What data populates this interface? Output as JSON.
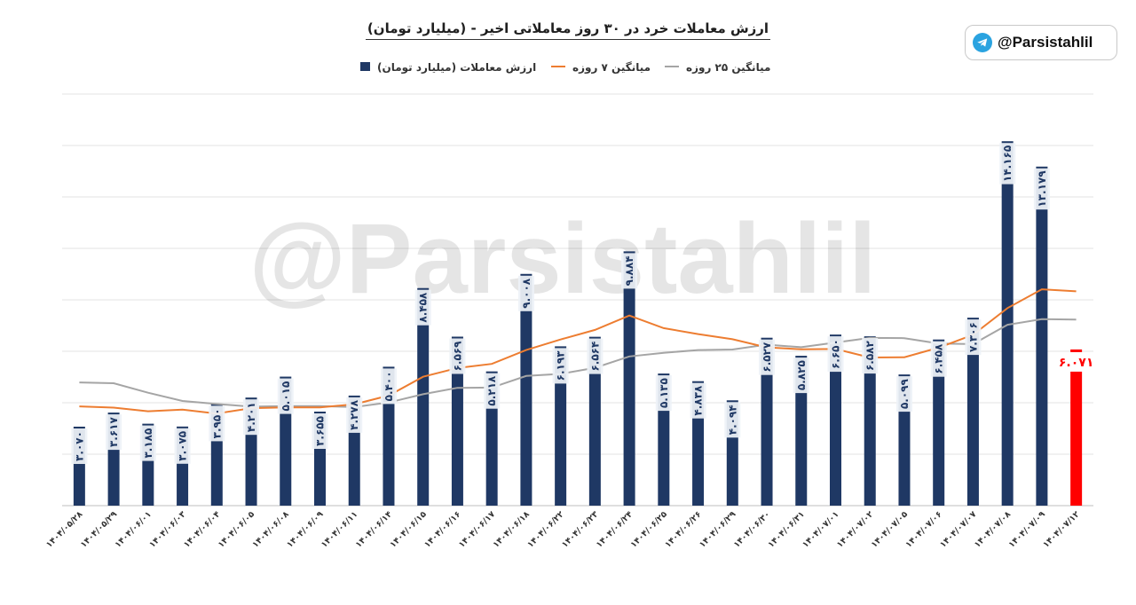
{
  "brand": {
    "handle": "@Parsistahlil",
    "icon": "telegram-icon",
    "color": "#2aa3e0"
  },
  "watermark": "@Parsistahlil",
  "chart_data": {
    "type": "bar",
    "title": "ارزش معاملات خرد در ۳۰ روز معاملاتی اخیر - (میلیارد تومان)",
    "ylim": [
      0,
      16000
    ],
    "grid": true,
    "legend_position": "top-center",
    "categories": [
      "۱۴۰۴/۰۵/۲۸",
      "۱۴۰۴/۰۵/۲۹",
      "۱۴۰۴/۰۶/۰۱",
      "۱۴۰۴/۰۶/۰۳",
      "۱۴۰۴/۰۶/۰۴",
      "۱۴۰۴/۰۶/۰۵",
      "۱۴۰۴/۰۶/۰۸",
      "۱۴۰۴/۰۶/۰۹",
      "۱۴۰۴/۰۶/۱۱",
      "۱۴۰۴/۰۶/۱۴",
      "۱۴۰۴/۰۶/۱۵",
      "۱۴۰۴/۰۶/۱۶",
      "۱۴۰۴/۰۶/۱۷",
      "۱۴۰۴/۰۶/۱۸",
      "۱۴۰۴/۰۶/۲۲",
      "۱۴۰۴/۰۶/۲۳",
      "۱۴۰۴/۰۶/۲۴",
      "۱۴۰۴/۰۶/۲۵",
      "۱۴۰۴/۰۶/۲۶",
      "۱۴۰۴/۰۶/۲۹",
      "۱۴۰۴/۰۶/۳۰",
      "۱۴۰۴/۰۶/۳۱",
      "۱۴۰۴/۰۷/۰۱",
      "۱۴۰۴/۰۷/۰۲",
      "۱۴۰۴/۰۷/۰۵",
      "۱۴۰۴/۰۷/۰۶",
      "۱۴۰۴/۰۷/۰۷",
      "۱۴۰۴/۰۷/۰۸",
      "۱۴۰۴/۰۷/۰۹",
      "۱۴۰۴/۰۷/۱۲"
    ],
    "series": [
      {
        "name": "ارزش معاملات (میلیارد تومان)",
        "color": "#1f3864",
        "highlight_color": "#ff0000",
        "values": [
          3070,
          3617,
          3185,
          3075,
          3950,
          4201,
          5015,
          3655,
          4278,
          5400,
          8458,
          6569,
          5218,
          9008,
          6193,
          6564,
          9884,
          5135,
          4838,
          4094,
          6527,
          5825,
          6650,
          6582,
          5099,
          6458,
          7306,
          14165,
          13179,
          6071
        ],
        "labels": [
          "۳.۰۷۰",
          "۳.۶۱۷",
          "۳.۱۸۵",
          "۳.۰۷۵",
          "۳.۹۵۰",
          "۴.۲۰۱",
          "۵.۰۱۵",
          "۳.۶۵۵",
          "۴.۲۷۸",
          "۵.۴۰۰",
          "۸.۴۵۸",
          "۶.۵۶۹",
          "۵.۲۱۸",
          "۹.۰۰۸",
          "۶.۱۹۳",
          "۶.۵۶۴",
          "۹.۸۸۴",
          "۵.۱۳۵",
          "۴.۸۳۸",
          "۴.۰۹۴",
          "۶.۵۲۷",
          "۵.۸۲۵",
          "۶.۶۵۰",
          "۶.۵۸۲",
          "۵.۰۹۹",
          "۶.۴۵۸",
          "۷.۳۰۶",
          "۱۴.۱۶۵",
          "۱۳.۱۷۹",
          "۶.۰۷۱"
        ]
      },
      {
        "name": "میانگین ۷ روزه",
        "color": "#ed7d31",
        "values": [
          3860,
          3810,
          3670,
          3730,
          3580,
          3790,
          3820,
          3820,
          3940,
          4280,
          5010,
          5350,
          5510,
          6050,
          6460,
          6830,
          7390,
          6900,
          6670,
          6470,
          6150,
          6080,
          6090,
          5760,
          5770,
          6140,
          6640,
          7680,
          8410,
          8330
        ]
      },
      {
        "name": "میانگین ۲۵ روزه",
        "color": "#a5a5a5",
        "values": [
          4790,
          4760,
          4390,
          4070,
          3950,
          3850,
          3870,
          3870,
          3830,
          4010,
          4330,
          4580,
          4590,
          5040,
          5120,
          5360,
          5800,
          5940,
          6050,
          6070,
          6260,
          6160,
          6340,
          6520,
          6510,
          6300,
          6280,
          7030,
          7250,
          7230
        ]
      }
    ]
  }
}
